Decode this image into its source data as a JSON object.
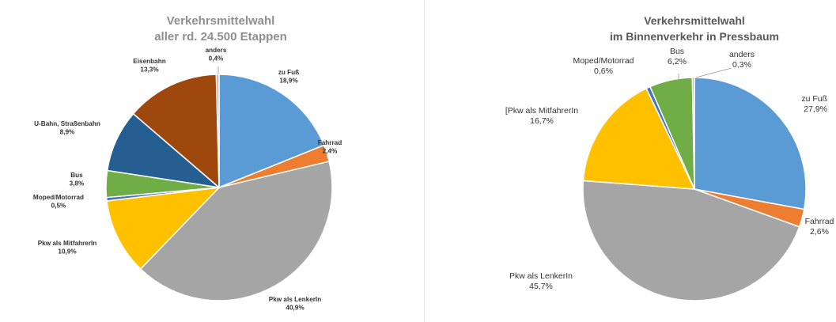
{
  "chart_data": [
    {
      "type": "pie",
      "title": [
        "Verkehrsmittelwahl",
        "aller rd. 24.500 Etappen"
      ],
      "colors": {
        "title": "#8f8f8f",
        "zu Fuß": "#5b9bd5",
        "Fahrrad": "#ed7d31",
        "Pkw als LenkerIn": "#a5a5a5",
        "Pkw als MitfahrerIn": "#ffc000",
        "Moped/Motorrad": "#4472c4",
        "Bus": "#70ad47",
        "U-Bahn, Straßenbahn": "#255e91",
        "Eisenbahn": "#9e480e",
        "anders": "#b4b4b4"
      },
      "slices": [
        {
          "label": "zu Fuß",
          "value": 18.9,
          "value_label": "18,9%"
        },
        {
          "label": "Fahrrad",
          "value": 2.4,
          "value_label": "2,4%"
        },
        {
          "label": "Pkw als LenkerIn",
          "value": 40.9,
          "value_label": "40,9%"
        },
        {
          "label": "Pkw als MitfahrerIn",
          "value": 10.9,
          "value_label": "10,9%"
        },
        {
          "label": "Moped/Motorrad",
          "value": 0.5,
          "value_label": "0,5%"
        },
        {
          "label": "Bus",
          "value": 3.8,
          "value_label": "3,8%"
        },
        {
          "label": "U-Bahn, Straßenbahn",
          "value": 8.9,
          "value_label": "8,9%"
        },
        {
          "label": "Eisenbahn",
          "value": 13.3,
          "value_label": "13,3%"
        },
        {
          "label": "anders",
          "value": 0.4,
          "value_label": "0,4%"
        }
      ]
    },
    {
      "type": "pie",
      "title": [
        "Verkehrsmittelwahl",
        "im Binnenverkehr in Pressbaum"
      ],
      "colors": {
        "title": "#595959",
        "zu Fuß": "#5b9bd5",
        "Fahrrad": "#ed7d31",
        "Pkw als LenkerIn": "#a5a5a5",
        "[Pkw als MitfahrerIn": "#ffc000",
        "Moped/Motorrad": "#4472c4",
        "Bus": "#70ad47",
        "anders": "#b4b4b4"
      },
      "slices": [
        {
          "label": "zu Fuß",
          "value": 27.9,
          "value_label": "27,9%"
        },
        {
          "label": "Fahrrad",
          "value": 2.6,
          "value_label": "2,6%"
        },
        {
          "label": "Pkw als LenkerIn",
          "value": 45.7,
          "value_label": "45,7%"
        },
        {
          "label": "[Pkw als MitfahrerIn",
          "value": 16.7,
          "value_label": "16,7%"
        },
        {
          "label": "Moped/Motorrad",
          "value": 0.6,
          "value_label": "0,6%"
        },
        {
          "label": "Bus",
          "value": 6.2,
          "value_label": "6,2%"
        },
        {
          "label": "anders",
          "value": 0.3,
          "value_label": "0,3%"
        }
      ]
    }
  ]
}
